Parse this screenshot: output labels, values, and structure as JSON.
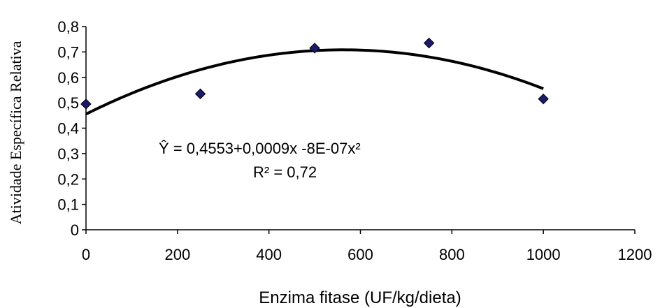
{
  "chart_data": {
    "type": "scatter",
    "xlabel": "Enzima fitase (UF/kg/dieta)",
    "ylabel": "Atividade Específica Relativa",
    "xlim": [
      0,
      1200
    ],
    "ylim": [
      0,
      0.8
    ],
    "xticks": [
      "0",
      "200",
      "400",
      "600",
      "800",
      "1000",
      "1200"
    ],
    "yticks": [
      "0",
      "0,1",
      "0,2",
      "0,3",
      "0,4",
      "0,5",
      "0,6",
      "0,7",
      "0,8"
    ],
    "grid": false,
    "legend": "none",
    "series": [
      {
        "x": [
          0,
          250,
          500,
          750,
          1000
        ],
        "y": [
          0.495,
          0.535,
          0.715,
          0.735,
          0.515
        ],
        "marker": "diamond",
        "color": "#1a1a6e"
      }
    ],
    "trendline": {
      "type": "polynomial",
      "coefficients": [
        0.4553,
        0.0009,
        -8e-07
      ],
      "x_range": [
        0,
        1000
      ],
      "color": "#000000"
    },
    "annotations": {
      "equation": "Ŷ = 0,4553+0,0009x -8E-07x²",
      "r_squared": "R² = 0,72"
    }
  }
}
